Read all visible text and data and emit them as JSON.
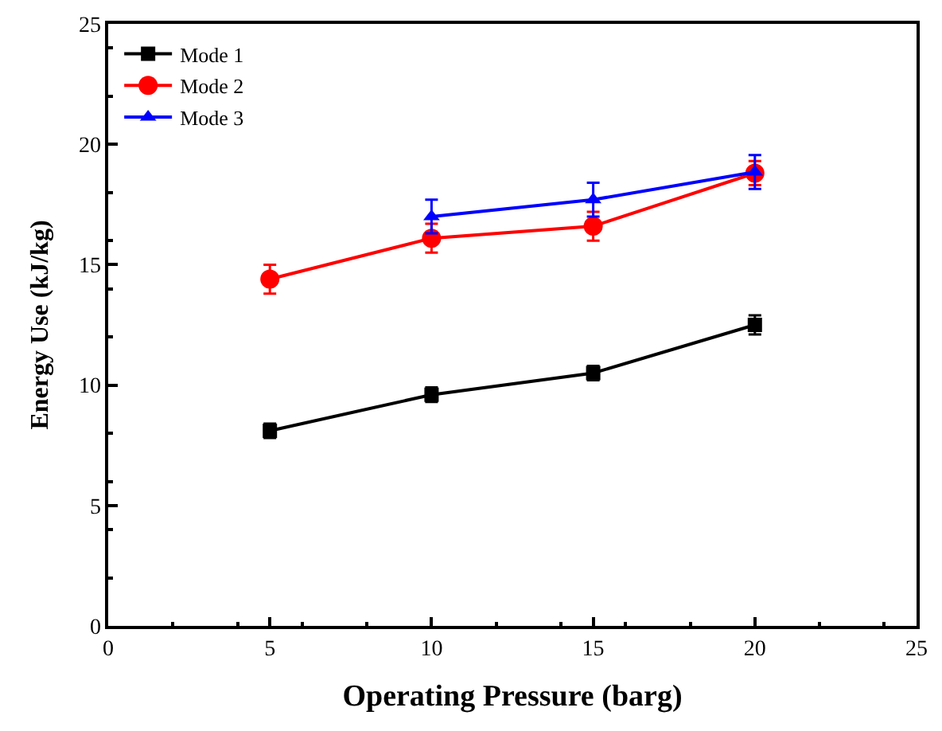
{
  "chart_data": {
    "type": "line",
    "xlabel": "Operating Pressure (barg)",
    "ylabel": "Energy Use (kJ/kg)",
    "xlim": [
      0,
      25
    ],
    "xticks": [
      0,
      5,
      10,
      15,
      20,
      25
    ],
    "ylim": [
      0,
      25
    ],
    "yticks": [
      0,
      5,
      10,
      15,
      20,
      25
    ],
    "legend": "top left",
    "line_style": "solid",
    "series": [
      {
        "name": "Mode 1",
        "color": "#000000",
        "marker": "square",
        "x": [
          5,
          10,
          15,
          20
        ],
        "values": [
          8.1,
          9.6,
          10.5,
          12.5
        ],
        "errors": [
          0.3,
          0.3,
          0.3,
          0.4
        ]
      },
      {
        "name": "Mode 2",
        "color": "#ff0000",
        "marker": "circle",
        "x": [
          5,
          10,
          15,
          20
        ],
        "values": [
          14.4,
          16.1,
          16.6,
          18.8
        ],
        "errors": [
          0.6,
          0.6,
          0.6,
          0.5
        ]
      },
      {
        "name": "Mode 3",
        "color": "#0000ff",
        "marker": "triangle",
        "x": [
          10,
          15,
          20
        ],
        "values": [
          17.0,
          17.7,
          18.85
        ],
        "errors": [
          0.7,
          0.7,
          0.7
        ]
      }
    ]
  }
}
